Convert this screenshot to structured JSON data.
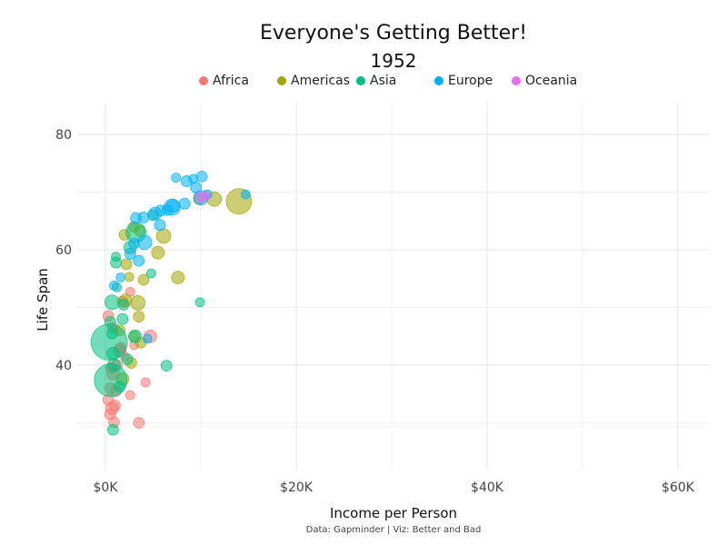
{
  "chart_data": {
    "type": "scatter",
    "title": "Everyone's Getting Better!",
    "subtitle": "1952",
    "xlabel": "Income per Person",
    "ylabel": "Life Span",
    "caption": "Data: Gapminder | Viz: Better and Bad",
    "xlim": [
      -3000,
      63000
    ],
    "ylim": [
      22,
      86
    ],
    "x_ticks": [
      0,
      20000,
      40000,
      60000
    ],
    "x_tick_labels": [
      "$0K",
      "$20K",
      "$40K",
      "$60K"
    ],
    "y_ticks": [
      40,
      60,
      80
    ],
    "y_tick_labels": [
      "40",
      "60",
      "80"
    ],
    "grid": true,
    "legend_position": "top",
    "series": [
      {
        "name": "Africa",
        "color": "#F8766D",
        "points": [
          {
            "x": 900,
            "y": 30.1,
            "r": 6
          },
          {
            "x": 3500,
            "y": 30.0,
            "r": 6
          },
          {
            "x": 500,
            "y": 31.5,
            "r": 6
          },
          {
            "x": 700,
            "y": 32.5,
            "r": 7
          },
          {
            "x": 1000,
            "y": 33.0,
            "r": 6
          },
          {
            "x": 300,
            "y": 34.0,
            "r": 6
          },
          {
            "x": 2600,
            "y": 34.8,
            "r": 5
          },
          {
            "x": 4200,
            "y": 37.0,
            "r": 5
          },
          {
            "x": 500,
            "y": 36.0,
            "r": 6
          },
          {
            "x": 800,
            "y": 38.5,
            "r": 7
          },
          {
            "x": 1200,
            "y": 40.0,
            "r": 6
          },
          {
            "x": 2000,
            "y": 41.5,
            "r": 5
          },
          {
            "x": 1600,
            "y": 43.0,
            "r": 6
          },
          {
            "x": 3000,
            "y": 43.5,
            "r": 5
          },
          {
            "x": 4700,
            "y": 45.0,
            "r": 7
          },
          {
            "x": 800,
            "y": 46.5,
            "r": 6
          },
          {
            "x": 300,
            "y": 48.5,
            "r": 6
          },
          {
            "x": 1800,
            "y": 51.0,
            "r": 6
          },
          {
            "x": 2600,
            "y": 52.7,
            "r": 5
          },
          {
            "x": 1100,
            "y": 35.5,
            "r": 6
          },
          {
            "x": 600,
            "y": 39.5,
            "r": 6
          },
          {
            "x": 1500,
            "y": 42.5,
            "r": 7
          }
        ]
      },
      {
        "name": "Americas",
        "color": "#A3A500",
        "points": [
          {
            "x": 13990,
            "y": 68.4,
            "r": 14
          },
          {
            "x": 11400,
            "y": 68.8,
            "r": 8
          },
          {
            "x": 2000,
            "y": 62.6,
            "r": 6
          },
          {
            "x": 6100,
            "y": 62.4,
            "r": 8
          },
          {
            "x": 3000,
            "y": 64.0,
            "r": 6
          },
          {
            "x": 5500,
            "y": 59.5,
            "r": 7
          },
          {
            "x": 2200,
            "y": 57.5,
            "r": 6
          },
          {
            "x": 7600,
            "y": 55.2,
            "r": 7
          },
          {
            "x": 4000,
            "y": 54.8,
            "r": 6
          },
          {
            "x": 2500,
            "y": 55.3,
            "r": 5
          },
          {
            "x": 3400,
            "y": 50.8,
            "r": 8
          },
          {
            "x": 2100,
            "y": 51.2,
            "r": 7
          },
          {
            "x": 3500,
            "y": 48.4,
            "r": 6
          },
          {
            "x": 1500,
            "y": 46.0,
            "r": 6
          },
          {
            "x": 3000,
            "y": 45.0,
            "r": 6
          },
          {
            "x": 3700,
            "y": 43.9,
            "r": 6
          },
          {
            "x": 2700,
            "y": 40.4,
            "r": 6
          },
          {
            "x": 1800,
            "y": 37.6,
            "r": 7
          },
          {
            "x": 9800,
            "y": 68.8,
            "r": 6
          },
          {
            "x": 3600,
            "y": 63.3,
            "r": 6
          }
        ]
      },
      {
        "name": "Asia",
        "color": "#00BF7D",
        "points": [
          {
            "x": 400,
            "y": 44.0,
            "r": 20
          },
          {
            "x": 550,
            "y": 37.4,
            "r": 18
          },
          {
            "x": 3200,
            "y": 63.0,
            "r": 11
          },
          {
            "x": 9900,
            "y": 50.9,
            "r": 5
          },
          {
            "x": 6400,
            "y": 39.9,
            "r": 6
          },
          {
            "x": 800,
            "y": 28.8,
            "r": 6
          },
          {
            "x": 700,
            "y": 50.9,
            "r": 8
          },
          {
            "x": 1100,
            "y": 57.8,
            "r": 6
          },
          {
            "x": 2600,
            "y": 60.4,
            "r": 7
          },
          {
            "x": 4800,
            "y": 55.9,
            "r": 5
          },
          {
            "x": 1900,
            "y": 50.5,
            "r": 6
          },
          {
            "x": 1100,
            "y": 58.8,
            "r": 5
          },
          {
            "x": 500,
            "y": 47.5,
            "r": 6
          },
          {
            "x": 800,
            "y": 42.0,
            "r": 7
          },
          {
            "x": 3100,
            "y": 45.0,
            "r": 7
          },
          {
            "x": 1500,
            "y": 36.3,
            "r": 6
          },
          {
            "x": 2300,
            "y": 41.0,
            "r": 6
          },
          {
            "x": 1800,
            "y": 48.0,
            "r": 6
          },
          {
            "x": 5000,
            "y": 66.0,
            "r": 6
          },
          {
            "x": 1200,
            "y": 53.5,
            "r": 5
          },
          {
            "x": 700,
            "y": 45.5,
            "r": 6
          },
          {
            "x": 900,
            "y": 40.0,
            "r": 7
          }
        ]
      },
      {
        "name": "Europe",
        "color": "#00B0F6",
        "points": [
          {
            "x": 7000,
            "y": 67.4,
            "r": 9
          },
          {
            "x": 10000,
            "y": 69.0,
            "r": 8
          },
          {
            "x": 8500,
            "y": 71.9,
            "r": 6
          },
          {
            "x": 9200,
            "y": 72.3,
            "r": 5
          },
          {
            "x": 10100,
            "y": 72.7,
            "r": 6
          },
          {
            "x": 7400,
            "y": 72.5,
            "r": 5
          },
          {
            "x": 9500,
            "y": 70.8,
            "r": 6
          },
          {
            "x": 10700,
            "y": 69.6,
            "r": 5
          },
          {
            "x": 8300,
            "y": 68.0,
            "r": 6
          },
          {
            "x": 6500,
            "y": 66.9,
            "r": 6
          },
          {
            "x": 5200,
            "y": 66.3,
            "r": 7
          },
          {
            "x": 4000,
            "y": 65.6,
            "r": 6
          },
          {
            "x": 3200,
            "y": 65.5,
            "r": 6
          },
          {
            "x": 5700,
            "y": 64.3,
            "r": 6
          },
          {
            "x": 4100,
            "y": 61.3,
            "r": 8
          },
          {
            "x": 3000,
            "y": 61.1,
            "r": 6
          },
          {
            "x": 2600,
            "y": 59.3,
            "r": 6
          },
          {
            "x": 3500,
            "y": 58.1,
            "r": 6
          },
          {
            "x": 1600,
            "y": 55.2,
            "r": 5
          },
          {
            "x": 900,
            "y": 53.8,
            "r": 5
          },
          {
            "x": 14700,
            "y": 69.6,
            "r": 5
          },
          {
            "x": 4400,
            "y": 44.6,
            "r": 5
          },
          {
            "x": 7100,
            "y": 67.6,
            "r": 7
          },
          {
            "x": 5800,
            "y": 66.8,
            "r": 6
          }
        ]
      },
      {
        "name": "Oceania",
        "color": "#E76BF3",
        "points": [
          {
            "x": 10040,
            "y": 69.1,
            "r": 6
          },
          {
            "x": 10550,
            "y": 69.4,
            "r": 5
          }
        ]
      }
    ]
  }
}
